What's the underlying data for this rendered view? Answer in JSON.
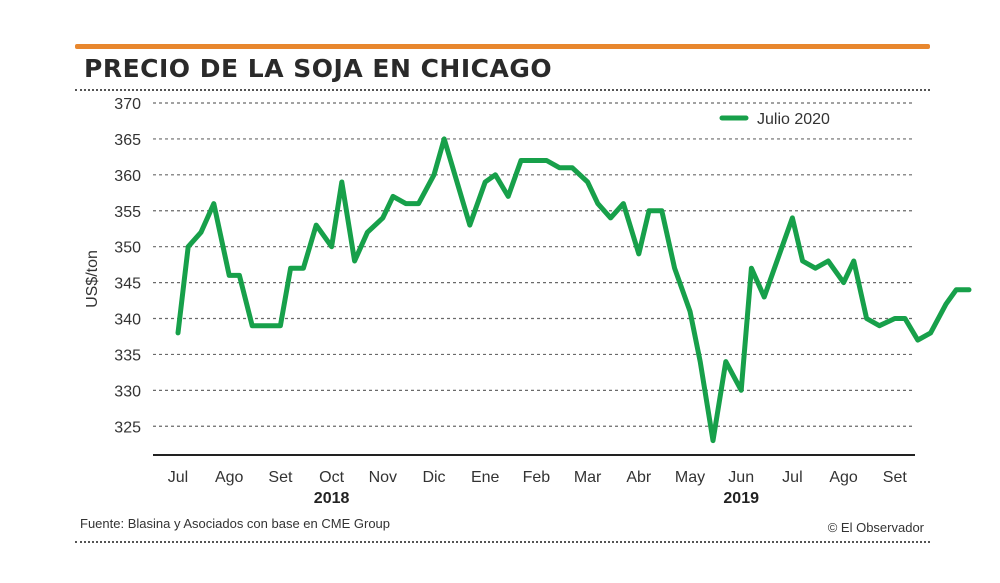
{
  "header": {
    "title": "PRECIO DE LA SOJA EN CHICAGO"
  },
  "footer": {
    "source": "Fuente: Blasina y Asociados con base en CME Group",
    "credit": "© El Observador"
  },
  "chart_data": {
    "type": "line",
    "title": "PRECIO DE LA SOJA EN CHICAGO",
    "ylabel": "US$/ton",
    "xlabel": "",
    "ylim": [
      321,
      370
    ],
    "yticks": [
      325,
      330,
      335,
      340,
      345,
      350,
      355,
      360,
      365,
      370
    ],
    "grid": true,
    "legend_position": "top-right",
    "month_labels": [
      "Jul",
      "Ago",
      "Set",
      "Oct",
      "Nov",
      "Dic",
      "Ene",
      "Feb",
      "Mar",
      "Abr",
      "May",
      "Jun",
      "Jul",
      "Ago",
      "Set"
    ],
    "year_labels": [
      {
        "label": "2018",
        "month_index": 3
      },
      {
        "label": "2019",
        "month_index": 11
      }
    ],
    "series": [
      {
        "name": "Julio 2020",
        "color": "#17a04a",
        "x": [
          0.0,
          0.2,
          0.45,
          0.7,
          1.0,
          1.2,
          1.45,
          1.7,
          2.0,
          2.2,
          2.45,
          2.7,
          3.0,
          3.2,
          3.45,
          3.7,
          4.0,
          4.2,
          4.45,
          4.7,
          5.0,
          5.2,
          5.45,
          5.7,
          6.0,
          6.2,
          6.45,
          6.7,
          7.0,
          7.2,
          7.45,
          7.7,
          8.0,
          8.2,
          8.45,
          8.7,
          9.0,
          9.2,
          9.45,
          9.7,
          10.0,
          10.2,
          10.45,
          10.7,
          11.0,
          11.2,
          11.45,
          11.7,
          12.0,
          12.2,
          12.45,
          12.7,
          13.0,
          13.2,
          13.45,
          13.7,
          14.0,
          14.2,
          14.45
        ],
        "values": [
          338,
          350,
          352,
          356,
          346,
          346,
          339,
          339,
          339,
          347,
          347,
          353,
          350,
          359,
          348,
          352,
          354,
          357,
          356,
          356,
          360,
          365,
          359,
          353,
          359,
          360,
          357,
          362,
          362,
          362,
          361,
          361,
          359,
          356,
          354,
          356,
          349,
          355,
          355,
          347,
          341,
          334,
          323,
          334,
          330,
          347,
          343,
          348,
          354,
          348,
          347,
          348,
          345,
          348,
          340,
          339,
          340,
          340,
          337
        ]
      }
    ],
    "series_tail": {
      "x": [
        14.7,
        15.0,
        15.2,
        15.45
      ],
      "values": [
        338,
        342,
        344,
        344
      ]
    }
  }
}
